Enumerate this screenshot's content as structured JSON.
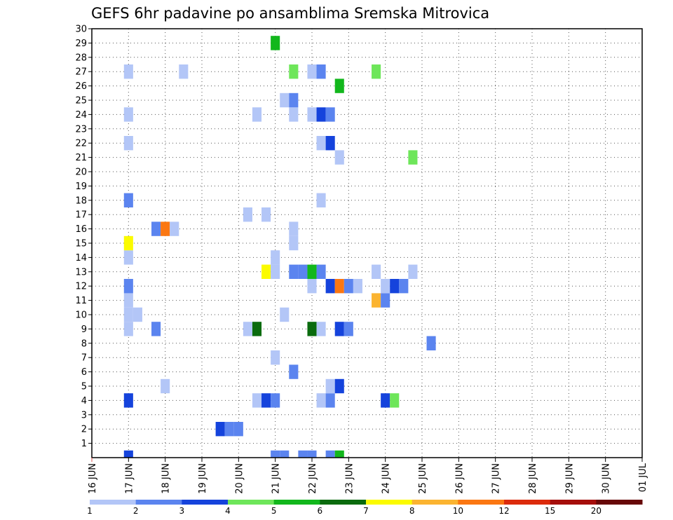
{
  "chart_data": {
    "type": "heatmap",
    "title": "GEFS 6hr padavine po ansamblima Sremska Mitrovica",
    "xlabel": "",
    "ylabel": "",
    "x_tick_labels": [
      "16 JUN",
      "17 JUN",
      "18 JUN",
      "19 JUN",
      "20 JUN",
      "21 JUN",
      "22 JUN",
      "23 JUN",
      "24 JUN",
      "25 JUN",
      "26 JUN",
      "27 JUN",
      "28 JUN",
      "29 JUN",
      "30 JUN",
      "01 JUL"
    ],
    "y_tick_labels": [
      "1",
      "2",
      "3",
      "4",
      "5",
      "6",
      "7",
      "8",
      "9",
      "10",
      "11",
      "12",
      "13",
      "14",
      "15",
      "16",
      "17",
      "18",
      "19",
      "20",
      "21",
      "22",
      "23",
      "24",
      "25",
      "26",
      "27",
      "28",
      "29",
      "30"
    ],
    "x_range": [
      0,
      60
    ],
    "y_range": [
      0,
      30
    ],
    "grid": true,
    "legend": {
      "placement": "bottom",
      "boundaries": [
        "1",
        "2",
        "3",
        "4",
        "5",
        "6",
        "7",
        "8",
        "10",
        "12",
        "15",
        "20"
      ],
      "colors": [
        "#b3c6f7",
        "#5b84ef",
        "#1543dc",
        "#6ee65a",
        "#12b71c",
        "#0a6b0e",
        "#fbfb00",
        "#fbb431",
        "#fb7712",
        "#dc2b0c",
        "#a50e0b",
        "#670808"
      ]
    },
    "cells": [
      {
        "x": 4,
        "y": 0,
        "c": 2
      },
      {
        "x": 20,
        "y": 0,
        "c": 1
      },
      {
        "x": 21,
        "y": 0,
        "c": 1
      },
      {
        "x": 23,
        "y": 0,
        "c": 1
      },
      {
        "x": 24,
        "y": 0,
        "c": 1
      },
      {
        "x": 26,
        "y": 0,
        "c": 1
      },
      {
        "x": 27,
        "y": 0,
        "c": 4
      },
      {
        "x": 14,
        "y": 2,
        "c": 2
      },
      {
        "x": 15,
        "y": 2,
        "c": 1
      },
      {
        "x": 16,
        "y": 2,
        "c": 1
      },
      {
        "x": 4,
        "y": 4,
        "c": 2
      },
      {
        "x": 18,
        "y": 4,
        "c": 0
      },
      {
        "x": 19,
        "y": 4,
        "c": 2
      },
      {
        "x": 20,
        "y": 4,
        "c": 1
      },
      {
        "x": 25,
        "y": 4,
        "c": 0
      },
      {
        "x": 26,
        "y": 4,
        "c": 1
      },
      {
        "x": 32,
        "y": 4,
        "c": 2
      },
      {
        "x": 33,
        "y": 4,
        "c": 3
      },
      {
        "x": 8,
        "y": 5,
        "c": 0
      },
      {
        "x": 26,
        "y": 5,
        "c": 0
      },
      {
        "x": 27,
        "y": 5,
        "c": 2
      },
      {
        "x": 22,
        "y": 6,
        "c": 1
      },
      {
        "x": 20,
        "y": 7,
        "c": 0
      },
      {
        "x": 37,
        "y": 8,
        "c": 1
      },
      {
        "x": 4,
        "y": 9,
        "c": 0
      },
      {
        "x": 7,
        "y": 9,
        "c": 1
      },
      {
        "x": 17,
        "y": 9,
        "c": 0
      },
      {
        "x": 18,
        "y": 9,
        "c": 5
      },
      {
        "x": 24,
        "y": 9,
        "c": 5
      },
      {
        "x": 25,
        "y": 9,
        "c": 0
      },
      {
        "x": 27,
        "y": 9,
        "c": 2
      },
      {
        "x": 28,
        "y": 9,
        "c": 1
      },
      {
        "x": 4,
        "y": 10,
        "c": 0
      },
      {
        "x": 5,
        "y": 10,
        "c": 0
      },
      {
        "x": 21,
        "y": 10,
        "c": 0
      },
      {
        "x": 4,
        "y": 11,
        "c": 0
      },
      {
        "x": 31,
        "y": 11,
        "c": 7
      },
      {
        "x": 32,
        "y": 11,
        "c": 1
      },
      {
        "x": 4,
        "y": 12,
        "c": 1
      },
      {
        "x": 24,
        "y": 12,
        "c": 0
      },
      {
        "x": 26,
        "y": 12,
        "c": 2
      },
      {
        "x": 27,
        "y": 12,
        "c": 8
      },
      {
        "x": 28,
        "y": 12,
        "c": 1
      },
      {
        "x": 29,
        "y": 12,
        "c": 0
      },
      {
        "x": 32,
        "y": 12,
        "c": 0
      },
      {
        "x": 33,
        "y": 12,
        "c": 2
      },
      {
        "x": 34,
        "y": 12,
        "c": 1
      },
      {
        "x": 19,
        "y": 13,
        "c": 6
      },
      {
        "x": 20,
        "y": 13,
        "c": 0
      },
      {
        "x": 22,
        "y": 13,
        "c": 1
      },
      {
        "x": 23,
        "y": 13,
        "c": 1
      },
      {
        "x": 24,
        "y": 13,
        "c": 4
      },
      {
        "x": 25,
        "y": 13,
        "c": 1
      },
      {
        "x": 31,
        "y": 13,
        "c": 0
      },
      {
        "x": 35,
        "y": 13,
        "c": 0
      },
      {
        "x": 4,
        "y": 14,
        "c": 0
      },
      {
        "x": 20,
        "y": 14,
        "c": 0
      },
      {
        "x": 4,
        "y": 15,
        "c": 6
      },
      {
        "x": 22,
        "y": 15,
        "c": 0
      },
      {
        "x": 7,
        "y": 16,
        "c": 1
      },
      {
        "x": 8,
        "y": 16,
        "c": 8
      },
      {
        "x": 9,
        "y": 16,
        "c": 0
      },
      {
        "x": 22,
        "y": 16,
        "c": 0
      },
      {
        "x": 17,
        "y": 17,
        "c": 0
      },
      {
        "x": 19,
        "y": 17,
        "c": 0
      },
      {
        "x": 4,
        "y": 18,
        "c": 1
      },
      {
        "x": 25,
        "y": 18,
        "c": 0
      },
      {
        "x": 27,
        "y": 21,
        "c": 0
      },
      {
        "x": 35,
        "y": 21,
        "c": 3
      },
      {
        "x": 4,
        "y": 22,
        "c": 0
      },
      {
        "x": 25,
        "y": 22,
        "c": 0
      },
      {
        "x": 26,
        "y": 22,
        "c": 2
      },
      {
        "x": 4,
        "y": 24,
        "c": 0
      },
      {
        "x": 18,
        "y": 24,
        "c": 0
      },
      {
        "x": 22,
        "y": 24,
        "c": 0
      },
      {
        "x": 24,
        "y": 24,
        "c": 0
      },
      {
        "x": 25,
        "y": 24,
        "c": 2
      },
      {
        "x": 26,
        "y": 24,
        "c": 1
      },
      {
        "x": 21,
        "y": 25,
        "c": 0
      },
      {
        "x": 22,
        "y": 25,
        "c": 1
      },
      {
        "x": 27,
        "y": 26,
        "c": 4
      },
      {
        "x": 4,
        "y": 27,
        "c": 0
      },
      {
        "x": 10,
        "y": 27,
        "c": 0
      },
      {
        "x": 22,
        "y": 27,
        "c": 3
      },
      {
        "x": 24,
        "y": 27,
        "c": 0
      },
      {
        "x": 25,
        "y": 27,
        "c": 1
      },
      {
        "x": 31,
        "y": 27,
        "c": 3
      },
      {
        "x": 20,
        "y": 29,
        "c": 4
      }
    ]
  }
}
